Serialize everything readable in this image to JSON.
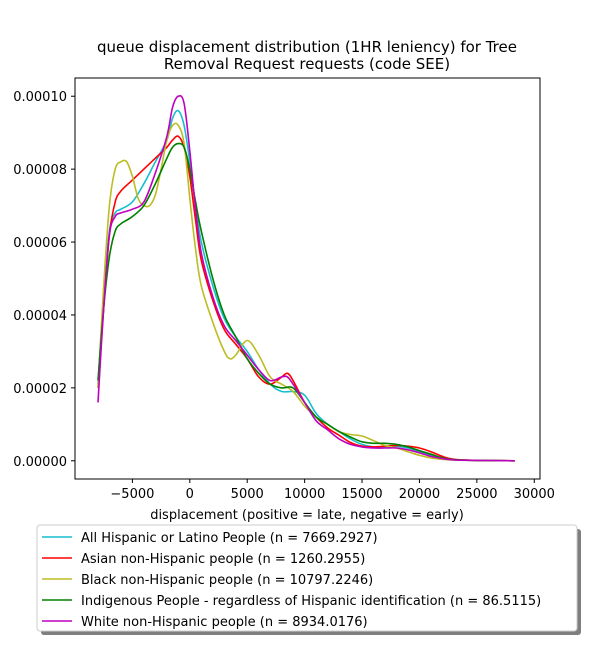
{
  "chart_data": {
    "type": "line",
    "title_lines": [
      "queue displacement distribution (1HR leniency) for Tree",
      "Removal Request  requests (code SEE)"
    ],
    "xlabel": "displacement (positive = late, negative = early)",
    "ylabel": "",
    "xlim": [
      -10000,
      30500
    ],
    "ylim": [
      -5e-06,
      0.000105
    ],
    "xticks": [
      -5000,
      0,
      5000,
      10000,
      15000,
      20000,
      25000,
      30000
    ],
    "yticks": [
      0.0,
      2e-05,
      4e-05,
      6e-05,
      8e-05,
      0.0001
    ],
    "xtick_labels": [
      "−5000",
      "0",
      "5000",
      "10000",
      "15000",
      "20000",
      "25000",
      "30000"
    ],
    "ytick_labels": [
      "0.00000",
      "0.00002",
      "0.00004",
      "0.00006",
      "0.00008",
      "0.00010"
    ],
    "grid": false,
    "legend_placement": "below",
    "series": [
      {
        "name": "All Hispanic or Latino People (n = 7669.2927)",
        "color": "#17becf",
        "points": [
          [
            -8000,
            2.1e-05
          ],
          [
            -7500,
            4.5e-05
          ],
          [
            -7000,
            6.3e-05
          ],
          [
            -6500,
            6.8e-05
          ],
          [
            -6000,
            6.9e-05
          ],
          [
            -5000,
            7.1e-05
          ],
          [
            -4000,
            7.6e-05
          ],
          [
            -3000,
            8.2e-05
          ],
          [
            -2000,
            8.8e-05
          ],
          [
            -1500,
            9.4e-05
          ],
          [
            -1000,
            9.6e-05
          ],
          [
            -500,
            9.2e-05
          ],
          [
            0,
            8.2e-05
          ],
          [
            500,
            7e-05
          ],
          [
            1000,
            6e-05
          ],
          [
            2000,
            4.8e-05
          ],
          [
            3000,
            3.9e-05
          ],
          [
            4000,
            3.4e-05
          ],
          [
            5000,
            3e-05
          ],
          [
            6000,
            2.5e-05
          ],
          [
            7000,
            2.1e-05
          ],
          [
            8000,
            1.9e-05
          ],
          [
            9000,
            1.9e-05
          ],
          [
            10000,
            1.8e-05
          ],
          [
            11000,
            1.3e-05
          ],
          [
            12000,
            1e-05
          ],
          [
            13000,
            8e-06
          ],
          [
            14000,
            6e-06
          ],
          [
            15000,
            4.5e-06
          ],
          [
            16000,
            3.8e-06
          ],
          [
            17000,
            3.8e-06
          ],
          [
            18000,
            4e-06
          ],
          [
            19000,
            3.5e-06
          ],
          [
            20000,
            2.5e-06
          ],
          [
            21000,
            1.5e-06
          ],
          [
            22000,
            8e-07
          ],
          [
            23000,
            3e-07
          ],
          [
            25000,
            1e-07
          ],
          [
            28300,
            0.0
          ]
        ]
      },
      {
        "name": "Asian non-Hispanic people (n = 1260.2955)",
        "color": "#ff0000",
        "points": [
          [
            -8000,
            2e-05
          ],
          [
            -7500,
            4.2e-05
          ],
          [
            -7000,
            6.2e-05
          ],
          [
            -6500,
            7.1e-05
          ],
          [
            -6000,
            7.4e-05
          ],
          [
            -5000,
            7.7e-05
          ],
          [
            -4000,
            8e-05
          ],
          [
            -3000,
            8.3e-05
          ],
          [
            -2000,
            8.6e-05
          ],
          [
            -1500,
            8.8e-05
          ],
          [
            -1000,
            8.9e-05
          ],
          [
            -500,
            8.6e-05
          ],
          [
            0,
            7.8e-05
          ],
          [
            500,
            6.6e-05
          ],
          [
            1000,
            5.5e-05
          ],
          [
            2000,
            4.4e-05
          ],
          [
            3000,
            3.6e-05
          ],
          [
            4000,
            3.2e-05
          ],
          [
            5000,
            2.8e-05
          ],
          [
            6000,
            2.3e-05
          ],
          [
            7000,
            2.1e-05
          ],
          [
            8000,
            2.3e-05
          ],
          [
            8500,
            2.4e-05
          ],
          [
            9000,
            2.2e-05
          ],
          [
            10000,
            1.6e-05
          ],
          [
            11000,
            1.2e-05
          ],
          [
            12000,
            9e-06
          ],
          [
            13000,
            7e-06
          ],
          [
            14000,
            5e-06
          ],
          [
            15000,
            4e-06
          ],
          [
            16000,
            3.8e-06
          ],
          [
            17000,
            4e-06
          ],
          [
            18000,
            4.2e-06
          ],
          [
            19000,
            4e-06
          ],
          [
            20000,
            3.5e-06
          ],
          [
            21000,
            2.5e-06
          ],
          [
            22000,
            1.2e-06
          ],
          [
            23000,
            4e-07
          ],
          [
            25000,
            1e-07
          ],
          [
            28300,
            0.0
          ]
        ]
      },
      {
        "name": "Black non-Hispanic people (n = 10797.2246)",
        "color": "#bcbd22",
        "points": [
          [
            -8000,
            2e-05
          ],
          [
            -7500,
            4.8e-05
          ],
          [
            -7000,
            7e-05
          ],
          [
            -6500,
            8e-05
          ],
          [
            -6000,
            8.2e-05
          ],
          [
            -5500,
            8.2e-05
          ],
          [
            -5000,
            7.8e-05
          ],
          [
            -4500,
            7.2e-05
          ],
          [
            -4000,
            7e-05
          ],
          [
            -3500,
            7e-05
          ],
          [
            -3000,
            7.3e-05
          ],
          [
            -2500,
            8e-05
          ],
          [
            -2000,
            8.8e-05
          ],
          [
            -1500,
            9.2e-05
          ],
          [
            -1000,
            9.2e-05
          ],
          [
            -500,
            8.7e-05
          ],
          [
            0,
            7.2e-05
          ],
          [
            500,
            5.8e-05
          ],
          [
            1000,
            4.8e-05
          ],
          [
            2000,
            3.8e-05
          ],
          [
            3000,
            3e-05
          ],
          [
            3500,
            2.8e-05
          ],
          [
            4000,
            2.9e-05
          ],
          [
            5000,
            3.3e-05
          ],
          [
            6000,
            2.9e-05
          ],
          [
            7000,
            2.3e-05
          ],
          [
            8000,
            2.1e-05
          ],
          [
            9000,
            1.9e-05
          ],
          [
            10000,
            1.5e-05
          ],
          [
            11000,
            1.2e-05
          ],
          [
            12000,
            1e-05
          ],
          [
            13000,
            8e-06
          ],
          [
            14000,
            7.2e-06
          ],
          [
            15000,
            6.8e-06
          ],
          [
            16000,
            5.5e-06
          ],
          [
            17000,
            4.2e-06
          ],
          [
            18000,
            3.5e-06
          ],
          [
            19000,
            2.5e-06
          ],
          [
            20000,
            1.5e-06
          ],
          [
            21000,
            8e-07
          ],
          [
            22000,
            4e-07
          ],
          [
            23000,
            2e-07
          ],
          [
            25000,
            1e-07
          ],
          [
            28300,
            0.0
          ]
        ]
      },
      {
        "name": "Indigenous People - regardless of Hispanic identification (n = 86.5115)",
        "color": "#008000",
        "points": [
          [
            -8000,
            2.2e-05
          ],
          [
            -7500,
            4.2e-05
          ],
          [
            -7000,
            5.6e-05
          ],
          [
            -6500,
            6.3e-05
          ],
          [
            -6000,
            6.5e-05
          ],
          [
            -5000,
            6.7e-05
          ],
          [
            -4000,
            7e-05
          ],
          [
            -3000,
            7.6e-05
          ],
          [
            -2000,
            8.3e-05
          ],
          [
            -1500,
            8.6e-05
          ],
          [
            -1000,
            8.7e-05
          ],
          [
            -500,
            8.6e-05
          ],
          [
            0,
            8e-05
          ],
          [
            500,
            7.1e-05
          ],
          [
            1000,
            6.3e-05
          ],
          [
            2000,
            5e-05
          ],
          [
            3000,
            4e-05
          ],
          [
            4000,
            3.4e-05
          ],
          [
            5000,
            2.8e-05
          ],
          [
            6000,
            2.4e-05
          ],
          [
            7000,
            2.1e-05
          ],
          [
            8000,
            2e-05
          ],
          [
            9000,
            2e-05
          ],
          [
            10000,
            1.6e-05
          ],
          [
            11000,
            1.2e-05
          ],
          [
            12000,
            1e-05
          ],
          [
            13000,
            8e-06
          ],
          [
            14000,
            6.5e-06
          ],
          [
            15000,
            5.2e-06
          ],
          [
            16000,
            4.8e-06
          ],
          [
            17000,
            4.8e-06
          ],
          [
            18000,
            4.5e-06
          ],
          [
            19000,
            3.8e-06
          ],
          [
            20000,
            2.8e-06
          ],
          [
            21000,
            1.8e-06
          ],
          [
            22000,
            8e-07
          ],
          [
            23000,
            3e-07
          ],
          [
            25000,
            1e-07
          ],
          [
            28300,
            0.0
          ]
        ]
      },
      {
        "name": "White non-Hispanic people (n = 8934.0176)",
        "color": "#bf00bf",
        "points": [
          [
            -8000,
            1.6e-05
          ],
          [
            -7500,
            4.2e-05
          ],
          [
            -7000,
            6.2e-05
          ],
          [
            -6500,
            6.7e-05
          ],
          [
            -6000,
            6.8e-05
          ],
          [
            -5000,
            6.9e-05
          ],
          [
            -4000,
            7.1e-05
          ],
          [
            -3000,
            7.9e-05
          ],
          [
            -2000,
            8.9e-05
          ],
          [
            -1500,
            9.7e-05
          ],
          [
            -1000,
            0.0001
          ],
          [
            -500,
            9.8e-05
          ],
          [
            0,
            8.5e-05
          ],
          [
            500,
            6.9e-05
          ],
          [
            1000,
            5.7e-05
          ],
          [
            2000,
            4.5e-05
          ],
          [
            3000,
            3.7e-05
          ],
          [
            4000,
            3.3e-05
          ],
          [
            5000,
            2.9e-05
          ],
          [
            6000,
            2.5e-05
          ],
          [
            7000,
            2.2e-05
          ],
          [
            8000,
            2.3e-05
          ],
          [
            8500,
            2.3e-05
          ],
          [
            9000,
            2.1e-05
          ],
          [
            10000,
            1.6e-05
          ],
          [
            11000,
            1.1e-05
          ],
          [
            12000,
            8.5e-06
          ],
          [
            13000,
            6e-06
          ],
          [
            14000,
            4.5e-06
          ],
          [
            15000,
            3.8e-06
          ],
          [
            16000,
            3.5e-06
          ],
          [
            17000,
            3.5e-06
          ],
          [
            18000,
            3.5e-06
          ],
          [
            19000,
            3e-06
          ],
          [
            20000,
            2.2e-06
          ],
          [
            21000,
            1.2e-06
          ],
          [
            22000,
            6e-07
          ],
          [
            23000,
            2e-07
          ],
          [
            25000,
            1e-07
          ],
          [
            28300,
            0.0
          ]
        ]
      }
    ]
  }
}
